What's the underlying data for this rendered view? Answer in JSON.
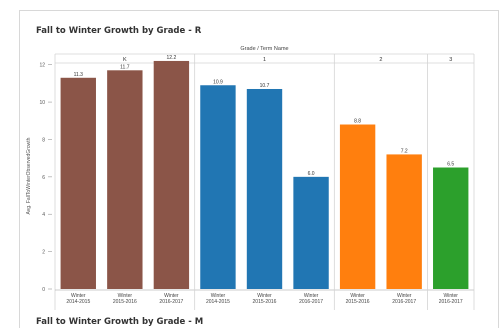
{
  "titles": {
    "top": "Fall to Winter Growth by Grade - R",
    "bottom": "Fall to Winter Growth by Grade - M"
  },
  "chart_data": {
    "type": "bar",
    "header_label": "Grade / Term Name",
    "ylabel": "Avg. FallToWinterObservedGrowth",
    "ylim": [
      0,
      13
    ],
    "y_ticks": [
      0,
      2,
      4,
      6,
      8,
      10,
      12
    ],
    "grid": false,
    "groups": [
      {
        "name": "K",
        "color": "#8b5548",
        "bars": [
          {
            "term": [
              "Winter",
              "2014-2015"
            ],
            "value": 11.3
          },
          {
            "term": [
              "Winter",
              "2015-2016"
            ],
            "value": 11.7
          },
          {
            "term": [
              "Winter",
              "2016-2017"
            ],
            "value": 12.2
          }
        ]
      },
      {
        "name": "1",
        "color": "#2176b3",
        "bars": [
          {
            "term": [
              "Winter",
              "2014-2015"
            ],
            "value": 10.9
          },
          {
            "term": [
              "Winter",
              "2015-2016"
            ],
            "value": 10.7
          },
          {
            "term": [
              "Winter",
              "2016-2017"
            ],
            "value": 6.0
          }
        ]
      },
      {
        "name": "2",
        "color": "#ff7f0e",
        "bars": [
          {
            "term": [
              "Winter",
              "2015-2016"
            ],
            "value": 8.8
          },
          {
            "term": [
              "Winter",
              "2016-2017"
            ],
            "value": 7.2
          }
        ]
      },
      {
        "name": "3",
        "color": "#2ca02c",
        "bars": [
          {
            "term": [
              "Winter",
              "2016-2017"
            ],
            "value": 6.5
          }
        ]
      }
    ]
  }
}
